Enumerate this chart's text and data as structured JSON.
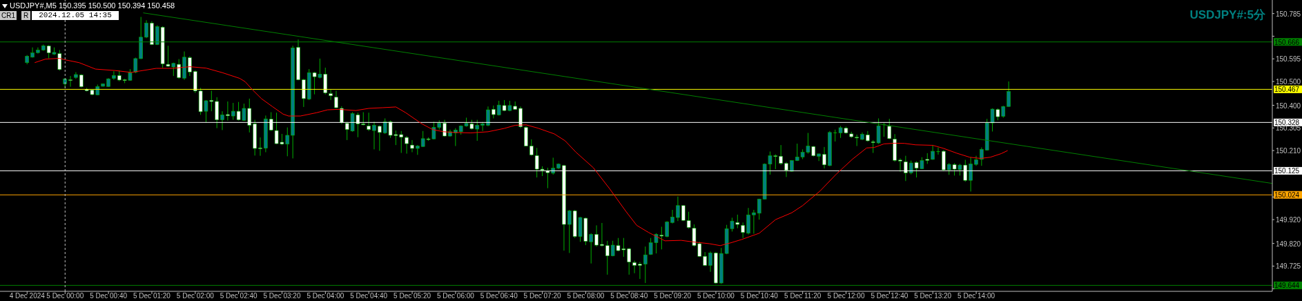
{
  "chart_data": {
    "type": "candlestick",
    "title": "USDJPY#,M5 150.395 150.500 150.394 150.458",
    "subtitle": "USDJPY#:5分",
    "annotations": [
      "CR1",
      "R",
      "2024.12.05 14:35"
    ],
    "colors": [
      "#008080",
      "#008080",
      "#008080",
      "#008080",
      "#ffffff",
      "#008080",
      "#ffffff",
      "#008080",
      "#ffffff",
      "#008080",
      "#ffffff",
      "#ffffff",
      "#ffffff",
      "#008080",
      "#008080",
      "#008080",
      "#008080",
      "#ffffff",
      "#ffffff",
      "#008080",
      "#008080",
      "#008080",
      "#008080",
      "#ffffff",
      "#008080",
      "#ffffff",
      "#ffffff",
      "#008080",
      "#ffffff",
      "#008080",
      "#ffffff",
      "#ffffff",
      "#ffffff",
      "#008080",
      "#ffffff",
      "#ffffff",
      "#008080",
      "#ffffff",
      "#008080",
      "#ffffff",
      "#008080",
      "#ffffff",
      "#ffffff",
      "#ffffff",
      "#008080",
      "#ffffff",
      "#ffffff",
      "#ffffff",
      "#008080",
      "#008080",
      "#ffffff",
      "#ffffff",
      "#008080",
      "#ffffff",
      "#008080",
      "#ffffff",
      "#ffffff",
      "#ffffff",
      "#ffffff",
      "#ffffff",
      "#008080",
      "#ffffff",
      "#ffffff",
      "#ffffff",
      "#008080",
      "#ffffff",
      "#008080",
      "#ffffff",
      "#ffffff",
      "#ffffff",
      "#ffffff",
      "#ffffff",
      "#008080",
      "#008080",
      "#ffffff",
      "#008080",
      "#008080",
      "#ffffff",
      "#008080",
      "#008080",
      "#008080",
      "#008080",
      "#ffffff",
      "#008080",
      "#008080",
      "#008080",
      "#ffffff",
      "#008080",
      "#ffffff",
      "#008080",
      "#ffffff",
      "#ffffff",
      "#ffffff",
      "#ffffff",
      "#ffffff",
      "#ffffff",
      "#ffffff",
      "#008080",
      "#008080",
      "#ffffff",
      "#008080",
      "#ffffff",
      "#008080",
      "#ffffff",
      "#008080",
      "#ffffff",
      "#ffffff",
      "#ffffff",
      "#008080",
      "#ffffff",
      "#ffffff",
      "#ffffff",
      "#ffffff",
      "#ffffff",
      "#008080",
      "#008080",
      "#008080",
      "#ffffff",
      "#008080",
      "#008080",
      "#008080",
      "#ffffff",
      "#ffffff",
      "#ffffff",
      "#ffffff",
      "#ffffff",
      "#008080",
      "#ffffff",
      "#008080",
      "#008080",
      "#008080",
      "#ffffff",
      "#ffffff",
      "#008080",
      "#008080",
      "#008080",
      "#008080",
      "#008080",
      "#ffffff",
      "#ffffff",
      "#ffffff",
      "#008080",
      "#008080",
      "#008080",
      "#008080",
      "#ffffff",
      "#008080",
      "#ffffff",
      "#008080",
      "#00b000",
      "#008080",
      "#ffffff",
      "#ffffff",
      "#ffffff",
      "#008080",
      "#ffffff",
      "#ffffff",
      "#008080",
      "#00b000",
      "#ffffff",
      "#ffffff",
      "#ffffff",
      "#ffffff",
      "#008080",
      "#ffffff",
      "#008080",
      "#ffffff",
      "#008080",
      "#00b000",
      "#ffffff",
      "#008080",
      "#ffffff",
      "#008080",
      "#ffffff",
      "#008080",
      "#008080",
      "#008080",
      "#008080",
      "#008080",
      "#ffffff",
      "#008080",
      "#008080"
    ],
    "x": [
      "2024-12-04T23:25",
      "2024-12-04T23:30",
      "2024-12-04T23:35",
      "2024-12-04T23:40",
      "2024-12-04T23:45",
      "2024-12-04T23:50",
      "2024-12-04T23:55",
      "2024-12-05T00:00",
      "2024-12-05T00:05",
      "2024-12-05T00:10",
      "2024-12-05T00:15",
      "2024-12-05T00:20",
      "2024-12-05T00:25",
      "2024-12-05T00:30",
      "2024-12-05T00:35",
      "2024-12-05T00:40",
      "2024-12-05T00:45",
      "2024-12-05T00:50",
      "2024-12-05T00:55",
      "2024-12-05T01:00",
      "2024-12-05T01:05",
      "2024-12-05T01:10",
      "2024-12-05T01:15",
      "2024-12-05T01:20",
      "2024-12-05T01:25",
      "2024-12-05T01:30",
      "2024-12-05T01:35",
      "2024-12-05T01:40",
      "2024-12-05T01:45",
      "2024-12-05T01:50",
      "2024-12-05T01:55",
      "2024-12-05T02:00",
      "2024-12-05T02:05",
      "2024-12-05T02:10",
      "2024-12-05T02:15",
      "2024-12-05T02:20",
      "2024-12-05T02:25",
      "2024-12-05T02:30",
      "2024-12-05T02:35",
      "2024-12-05T02:40",
      "2024-12-05T02:45",
      "2024-12-05T02:50",
      "2024-12-05T02:55",
      "2024-12-05T03:00",
      "2024-12-05T03:05",
      "2024-12-05T03:10",
      "2024-12-05T03:15",
      "2024-12-05T03:20",
      "2024-12-05T03:25",
      "2024-12-05T03:30",
      "2024-12-05T03:35",
      "2024-12-05T03:40",
      "2024-12-05T03:45",
      "2024-12-05T03:50",
      "2024-12-05T03:55",
      "2024-12-05T04:00",
      "2024-12-05T04:05",
      "2024-12-05T04:10",
      "2024-12-05T04:15",
      "2024-12-05T04:20",
      "2024-12-05T04:25",
      "2024-12-05T04:30",
      "2024-12-05T04:35",
      "2024-12-05T04:40",
      "2024-12-05T04:45",
      "2024-12-05T04:50",
      "2024-12-05T04:55",
      "2024-12-05T05:00",
      "2024-12-05T05:05",
      "2024-12-05T05:10",
      "2024-12-05T05:15",
      "2024-12-05T05:20",
      "2024-12-05T05:25",
      "2024-12-05T05:30",
      "2024-12-05T05:35",
      "2024-12-05T05:40",
      "2024-12-05T05:45",
      "2024-12-05T05:50",
      "2024-12-05T05:55",
      "2024-12-05T06:00",
      "2024-12-05T06:05",
      "2024-12-05T06:10",
      "2024-12-05T06:15",
      "2024-12-05T06:20",
      "2024-12-05T06:25",
      "2024-12-05T06:30",
      "2024-12-05T06:35",
      "2024-12-05T06:40",
      "2024-12-05T06:45",
      "2024-12-05T06:50",
      "2024-12-05T06:55",
      "2024-12-05T07:00",
      "2024-12-05T07:05",
      "2024-12-05T07:10",
      "2024-12-05T07:15",
      "2024-12-05T07:20",
      "2024-12-05T07:25",
      "2024-12-05T07:30",
      "2024-12-05T07:35",
      "2024-12-05T07:40",
      "2024-12-05T07:45",
      "2024-12-05T07:50",
      "2024-12-05T07:55",
      "2024-12-05T08:00",
      "2024-12-05T08:05",
      "2024-12-05T08:10",
      "2024-12-05T08:15",
      "2024-12-05T08:20",
      "2024-12-05T08:25",
      "2024-12-05T08:30",
      "2024-12-05T08:35",
      "2024-12-05T08:40",
      "2024-12-05T08:45",
      "2024-12-05T08:50",
      "2024-12-05T08:55",
      "2024-12-05T09:00",
      "2024-12-05T09:05",
      "2024-12-05T09:10",
      "2024-12-05T09:15",
      "2024-12-05T09:20",
      "2024-12-05T09:25",
      "2024-12-05T09:30",
      "2024-12-05T09:35",
      "2024-12-05T09:40",
      "2024-12-05T09:45",
      "2024-12-05T09:50",
      "2024-12-05T09:55",
      "2024-12-05T10:00",
      "2024-12-05T10:05",
      "2024-12-05T10:10",
      "2024-12-05T10:15",
      "2024-12-05T10:20",
      "2024-12-05T10:25",
      "2024-12-05T10:30",
      "2024-12-05T10:35",
      "2024-12-05T10:40",
      "2024-12-05T10:45",
      "2024-12-05T10:50",
      "2024-12-05T10:55",
      "2024-12-05T11:00",
      "2024-12-05T11:05",
      "2024-12-05T11:10",
      "2024-12-05T11:15",
      "2024-12-05T11:20",
      "2024-12-05T11:25",
      "2024-12-05T11:30",
      "2024-12-05T11:35",
      "2024-12-05T11:40",
      "2024-12-05T11:45",
      "2024-12-05T11:50",
      "2024-12-05T11:55",
      "2024-12-05T12:00",
      "2024-12-05T12:05",
      "2024-12-05T12:10",
      "2024-12-05T12:15",
      "2024-12-05T12:20",
      "2024-12-05T12:25",
      "2024-12-05T12:30",
      "2024-12-05T12:35",
      "2024-12-05T12:40",
      "2024-12-05T12:45",
      "2024-12-05T12:50",
      "2024-12-05T12:55",
      "2024-12-05T13:00",
      "2024-12-05T13:05",
      "2024-12-05T13:10",
      "2024-12-05T13:15",
      "2024-12-05T13:20",
      "2024-12-05T13:25",
      "2024-12-05T13:30",
      "2024-12-05T13:35",
      "2024-12-05T13:40",
      "2024-12-05T13:45",
      "2024-12-05T13:50",
      "2024-12-05T13:55",
      "2024-12-05T14:00",
      "2024-12-05T14:05",
      "2024-12-05T14:10",
      "2024-12-05T14:15",
      "2024-12-05T14:20",
      "2024-12-05T14:25",
      "2024-12-05T14:30"
    ],
    "ohlc": [
      [
        150.579,
        150.611,
        150.572,
        150.606
      ],
      [
        150.602,
        150.643,
        150.6,
        150.62
      ],
      [
        150.621,
        150.643,
        150.617,
        150.632
      ],
      [
        150.632,
        150.655,
        150.629,
        150.65
      ],
      [
        150.649,
        150.653,
        150.597,
        150.62
      ],
      [
        150.615,
        150.643,
        150.611,
        150.622
      ],
      [
        150.617,
        150.632,
        150.546,
        150.55
      ],
      [
        150.49,
        150.513,
        150.475,
        150.511
      ],
      [
        150.507,
        150.523,
        150.478,
        150.505
      ],
      [
        150.517,
        150.539,
        150.511,
        150.529
      ],
      [
        150.527,
        150.531,
        150.475,
        150.478
      ],
      [
        150.466,
        150.473,
        150.458,
        150.461
      ],
      [
        150.464,
        150.466,
        150.442,
        150.445
      ],
      [
        150.444,
        150.487,
        150.442,
        150.479
      ],
      [
        150.48,
        150.492,
        150.478,
        150.49
      ],
      [
        150.479,
        150.514,
        150.477,
        150.511
      ],
      [
        150.513,
        150.543,
        150.507,
        150.525
      ],
      [
        150.525,
        150.546,
        150.501,
        150.506
      ],
      [
        150.507,
        150.511,
        150.493,
        150.504
      ],
      [
        150.505,
        150.552,
        150.503,
        150.537
      ],
      [
        150.539,
        150.6,
        150.535,
        150.596
      ],
      [
        150.596,
        150.771,
        150.594,
        150.686
      ],
      [
        150.686,
        150.757,
        150.682,
        150.745
      ],
      [
        150.745,
        150.753,
        150.653,
        150.655
      ],
      [
        150.655,
        150.736,
        150.653,
        150.73
      ],
      [
        150.728,
        150.732,
        150.558,
        150.574
      ],
      [
        150.572,
        150.65,
        150.561,
        150.564
      ],
      [
        150.561,
        150.579,
        150.523,
        150.576
      ],
      [
        150.572,
        150.594,
        150.511,
        150.516
      ],
      [
        150.514,
        150.626,
        150.507,
        150.602
      ],
      [
        150.6,
        150.606,
        150.523,
        150.54
      ],
      [
        150.542,
        150.546,
        150.452,
        150.46
      ],
      [
        150.46,
        150.473,
        150.36,
        150.373
      ],
      [
        150.375,
        150.422,
        150.328,
        150.419
      ],
      [
        150.421,
        150.461,
        150.375,
        150.416
      ],
      [
        150.416,
        150.434,
        150.304,
        150.339
      ],
      [
        150.339,
        150.375,
        150.296,
        150.36
      ],
      [
        150.361,
        150.416,
        150.336,
        150.356
      ],
      [
        150.355,
        150.41,
        150.339,
        150.375
      ],
      [
        150.375,
        150.414,
        150.336,
        150.339
      ],
      [
        150.337,
        150.407,
        150.334,
        150.387
      ],
      [
        150.387,
        150.428,
        150.286,
        150.316
      ],
      [
        150.322,
        150.339,
        150.189,
        150.219
      ],
      [
        150.221,
        150.265,
        150.188,
        150.218
      ],
      [
        150.22,
        150.357,
        150.203,
        150.343
      ],
      [
        150.342,
        150.371,
        150.292,
        150.296
      ],
      [
        150.294,
        150.369,
        150.237,
        150.239
      ],
      [
        150.245,
        150.28,
        150.233,
        150.237
      ],
      [
        150.237,
        150.307,
        150.186,
        150.274
      ],
      [
        150.274,
        150.65,
        150.177,
        150.641
      ],
      [
        150.643,
        150.676,
        150.505,
        150.507
      ],
      [
        150.507,
        150.511,
        150.393,
        150.428
      ],
      [
        150.426,
        150.552,
        150.422,
        150.537
      ],
      [
        150.537,
        150.54,
        150.446,
        150.52
      ],
      [
        150.517,
        150.596,
        150.513,
        150.531
      ],
      [
        150.531,
        150.558,
        150.446,
        150.452
      ],
      [
        150.449,
        150.466,
        150.422,
        150.44
      ],
      [
        150.434,
        150.461,
        150.387,
        150.39
      ],
      [
        150.387,
        150.396,
        150.322,
        150.328
      ],
      [
        150.324,
        150.331,
        150.254,
        150.298
      ],
      [
        150.292,
        150.371,
        150.289,
        150.365
      ],
      [
        150.36,
        150.369,
        150.266,
        150.322
      ],
      [
        150.322,
        150.371,
        150.316,
        150.318
      ],
      [
        150.313,
        150.369,
        150.292,
        150.298
      ],
      [
        150.294,
        150.331,
        150.215,
        150.316
      ],
      [
        150.312,
        150.316,
        150.209,
        150.286
      ],
      [
        150.284,
        150.345,
        150.28,
        150.331
      ],
      [
        150.331,
        150.336,
        150.263,
        150.274
      ],
      [
        150.277,
        150.294,
        150.233,
        150.273
      ],
      [
        150.277,
        150.292,
        150.2,
        150.266
      ],
      [
        150.265,
        150.271,
        150.197,
        150.239
      ],
      [
        150.233,
        150.254,
        150.203,
        150.219
      ],
      [
        150.219,
        150.233,
        150.192,
        150.229
      ],
      [
        150.227,
        150.292,
        150.225,
        150.26
      ],
      [
        150.259,
        150.265,
        150.251,
        150.257
      ],
      [
        150.259,
        150.331,
        150.257,
        150.307
      ],
      [
        150.307,
        150.337,
        150.298,
        150.325
      ],
      [
        150.325,
        150.339,
        150.268,
        150.271
      ],
      [
        150.271,
        150.298,
        150.268,
        150.289
      ],
      [
        150.284,
        150.304,
        150.229,
        150.296
      ],
      [
        150.289,
        150.316,
        150.277,
        150.313
      ],
      [
        150.313,
        150.348,
        150.31,
        150.324
      ],
      [
        150.322,
        150.339,
        150.298,
        150.302
      ],
      [
        150.3,
        150.339,
        150.251,
        150.316
      ],
      [
        150.316,
        150.33,
        150.292,
        150.322
      ],
      [
        150.316,
        150.395,
        150.312,
        150.381
      ],
      [
        150.383,
        150.399,
        150.345,
        150.361
      ],
      [
        150.36,
        150.419,
        150.357,
        150.401
      ],
      [
        150.399,
        150.422,
        150.375,
        150.378
      ],
      [
        150.378,
        150.419,
        150.375,
        150.399
      ],
      [
        150.396,
        150.416,
        150.381,
        150.383
      ],
      [
        150.387,
        150.395,
        150.304,
        150.31
      ],
      [
        150.307,
        150.312,
        150.227,
        150.229
      ],
      [
        150.229,
        150.257,
        150.188,
        150.192
      ],
      [
        150.189,
        150.221,
        150.097,
        150.132
      ],
      [
        150.132,
        150.144,
        150.103,
        150.127
      ],
      [
        150.124,
        150.138,
        150.052,
        150.117
      ],
      [
        150.115,
        150.18,
        150.109,
        150.136
      ],
      [
        150.136,
        150.156,
        150.132,
        150.153
      ],
      [
        150.147,
        150.15,
        149.79,
        149.9
      ],
      [
        149.9,
        149.961,
        149.78,
        149.957
      ],
      [
        149.957,
        149.961,
        149.843,
        149.849
      ],
      [
        149.849,
        149.931,
        149.827,
        149.929
      ],
      [
        149.926,
        149.929,
        149.813,
        149.829
      ],
      [
        149.827,
        149.863,
        149.736,
        149.858
      ],
      [
        149.858,
        149.896,
        149.807,
        149.813
      ],
      [
        149.816,
        149.906,
        149.807,
        149.811
      ],
      [
        149.811,
        149.831,
        149.689,
        149.768
      ],
      [
        149.768,
        149.831,
        149.766,
        149.813
      ],
      [
        149.811,
        149.843,
        149.787,
        149.79
      ],
      [
        149.798,
        149.843,
        149.764,
        149.793
      ],
      [
        149.798,
        149.801,
        149.689,
        149.742
      ],
      [
        149.74,
        149.748,
        149.695,
        149.728
      ],
      [
        149.733,
        149.742,
        149.671,
        149.728
      ],
      [
        149.733,
        149.807,
        149.654,
        149.772
      ],
      [
        149.774,
        149.843,
        149.772,
        149.823
      ],
      [
        149.823,
        149.863,
        149.778,
        149.858
      ],
      [
        149.855,
        149.89,
        149.795,
        149.851
      ],
      [
        149.849,
        149.914,
        149.846,
        149.91
      ],
      [
        149.908,
        149.961,
        149.904,
        149.931
      ],
      [
        149.929,
        150.017,
        149.914,
        149.979
      ],
      [
        149.979,
        149.981,
        149.914,
        149.917
      ],
      [
        149.916,
        149.953,
        149.882,
        149.887
      ],
      [
        149.884,
        149.9,
        149.807,
        149.811
      ],
      [
        149.819,
        149.827,
        149.764,
        149.766
      ],
      [
        149.766,
        149.784,
        149.725,
        149.728
      ],
      [
        149.728,
        149.786,
        149.701,
        149.78
      ],
      [
        149.78,
        149.784,
        149.65,
        149.654
      ],
      [
        149.654,
        149.801,
        149.65,
        149.778
      ],
      [
        149.778,
        149.898,
        149.775,
        149.882
      ],
      [
        149.882,
        149.928,
        149.87,
        149.914
      ],
      [
        149.908,
        149.941,
        149.884,
        149.9
      ],
      [
        149.896,
        149.908,
        149.843,
        149.866
      ],
      [
        149.863,
        149.969,
        149.858,
        149.94
      ],
      [
        149.94,
        149.961,
        149.861,
        149.949
      ],
      [
        149.947,
        150.008,
        149.92,
        150.006
      ],
      [
        150.006,
        150.156,
        150.005,
        150.153
      ],
      [
        150.153,
        150.206,
        150.109,
        150.188
      ],
      [
        150.188,
        150.194,
        150.132,
        150.186
      ],
      [
        150.186,
        150.233,
        150.15,
        150.156
      ],
      [
        150.156,
        150.162,
        150.099,
        150.127
      ],
      [
        150.123,
        150.17,
        150.121,
        150.168
      ],
      [
        150.168,
        150.239,
        150.166,
        150.183
      ],
      [
        150.183,
        150.215,
        150.174,
        150.203
      ],
      [
        150.203,
        150.284,
        150.197,
        150.229
      ],
      [
        150.227,
        150.229,
        150.185,
        150.188
      ],
      [
        150.186,
        150.197,
        150.166,
        150.196
      ],
      [
        150.194,
        150.225,
        150.135,
        150.15
      ],
      [
        150.147,
        150.292,
        150.144,
        150.286
      ],
      [
        150.286,
        150.298,
        150.248,
        150.286
      ],
      [
        150.284,
        150.313,
        150.263,
        150.306
      ],
      [
        150.304,
        150.31,
        150.28,
        150.284
      ],
      [
        150.28,
        150.289,
        150.263,
        150.268
      ],
      [
        150.266,
        150.277,
        150.229,
        150.263
      ],
      [
        150.257,
        150.286,
        150.254,
        150.278
      ],
      [
        150.276,
        150.292,
        150.247,
        150.251
      ],
      [
        150.247,
        150.254,
        150.2,
        150.243
      ],
      [
        150.242,
        150.345,
        150.238,
        150.314
      ],
      [
        150.32,
        150.326,
        150.268,
        150.32
      ],
      [
        150.312,
        150.343,
        150.258,
        150.26
      ],
      [
        150.258,
        150.279,
        150.163,
        150.169
      ],
      [
        150.17,
        150.177,
        150.121,
        150.166
      ],
      [
        150.163,
        150.188,
        150.082,
        150.116
      ],
      [
        150.116,
        150.168,
        150.11,
        150.158
      ],
      [
        150.16,
        150.165,
        150.097,
        150.136
      ],
      [
        150.134,
        150.182,
        150.132,
        150.168
      ],
      [
        150.173,
        150.199,
        150.154,
        150.169
      ],
      [
        150.173,
        150.232,
        150.171,
        150.207
      ],
      [
        150.207,
        150.223,
        150.193,
        150.207
      ],
      [
        150.207,
        150.212,
        150.123,
        150.129
      ],
      [
        150.129,
        150.157,
        150.108,
        150.152
      ],
      [
        150.151,
        150.157,
        150.105,
        150.132
      ],
      [
        150.13,
        150.154,
        150.105,
        150.149
      ],
      [
        150.149,
        150.171,
        150.079,
        150.085
      ],
      [
        150.085,
        150.182,
        150.038,
        150.154
      ],
      [
        150.152,
        150.188,
        150.146,
        150.171
      ],
      [
        150.173,
        150.223,
        150.146,
        150.215
      ],
      [
        150.212,
        150.343,
        150.21,
        150.326
      ],
      [
        150.326,
        150.387,
        150.29,
        150.384
      ],
      [
        150.382,
        150.387,
        150.337,
        150.352
      ],
      [
        150.354,
        150.398,
        150.348,
        150.395
      ],
      [
        150.395,
        150.5,
        150.394,
        150.458
      ]
    ],
    "series": [
      {
        "type": "line",
        "color": "#ff0000",
        "x": [
          "2024-12-04T23:32",
          "2024-12-04T23:42",
          "2024-12-04T23:55",
          "2024-12-05T00:00",
          "2024-12-05T00:13",
          "2024-12-05T00:28",
          "2024-12-05T00:46",
          "2024-12-05T01:01",
          "2024-12-05T01:09",
          "2024-12-05T01:24",
          "2024-12-05T01:39",
          "2024-12-05T01:55",
          "2024-12-05T02:10",
          "2024-12-05T02:25",
          "2024-12-05T02:41",
          "2024-12-05T02:46",
          "2024-12-05T02:53",
          "2024-12-05T03:01",
          "2024-12-05T03:11",
          "2024-12-05T03:21",
          "2024-12-05T03:26",
          "2024-12-05T03:37",
          "2024-12-05T03:52",
          "2024-12-05T04:02",
          "2024-12-05T04:12",
          "2024-12-05T04:28",
          "2024-12-05T04:40",
          "2024-12-05T04:53",
          "2024-12-05T05:05",
          "2024-12-05T05:14",
          "2024-12-05T05:29",
          "2024-12-05T05:39",
          "2024-12-05T05:49",
          "2024-12-05T05:59",
          "2024-12-05T06:14",
          "2024-12-05T06:30",
          "2024-12-05T06:45",
          "2024-12-05T06:55",
          "2024-12-05T07:05",
          "2024-12-05T07:16",
          "2024-12-05T07:31",
          "2024-12-05T07:41",
          "2024-12-05T07:51",
          "2024-12-05T08:07",
          "2024-12-05T08:22",
          "2024-12-05T08:37",
          "2024-12-05T08:47",
          "2024-12-05T08:58",
          "2024-12-05T09:13",
          "2024-12-05T09:28",
          "2024-12-05T09:38",
          "2024-12-05T09:54",
          "2024-12-05T10:04",
          "2024-12-05T10:14",
          "2024-12-05T10:24",
          "2024-12-05T10:40",
          "2024-12-05T10:55",
          "2024-12-05T11:10",
          "2024-12-05T11:20",
          "2024-12-05T11:36",
          "2024-12-05T11:51",
          "2024-12-05T12:06",
          "2024-12-05T12:19",
          "2024-12-05T12:26",
          "2024-12-05T12:35",
          "2024-12-05T12:45",
          "2024-12-05T12:54",
          "2024-12-05T13:04",
          "2024-12-05T13:20",
          "2024-12-05T13:30",
          "2024-12-05T13:42",
          "2024-12-05T13:54",
          "2024-12-05T14:04",
          "2024-12-05T14:13",
          "2024-12-05T14:23",
          "2024-12-05T14:29"
        ],
        "values": [
          150.579,
          150.594,
          150.597,
          150.591,
          150.579,
          150.552,
          150.546,
          150.538,
          150.544,
          150.555,
          150.555,
          150.562,
          150.556,
          150.537,
          150.513,
          150.499,
          150.464,
          150.428,
          150.395,
          150.363,
          150.355,
          150.355,
          150.369,
          150.381,
          150.383,
          150.378,
          150.387,
          150.39,
          150.393,
          150.369,
          150.322,
          150.298,
          150.289,
          150.286,
          150.284,
          150.289,
          150.303,
          150.316,
          150.318,
          150.304,
          150.28,
          150.251,
          150.203,
          150.138,
          150.05,
          149.955,
          149.896,
          149.866,
          149.831,
          149.833,
          149.827,
          149.819,
          149.811,
          149.823,
          149.837,
          149.863,
          149.92,
          149.949,
          149.979,
          150.04,
          150.111,
          150.174,
          150.221,
          150.223,
          150.238,
          150.241,
          150.24,
          150.234,
          150.232,
          150.219,
          150.199,
          150.182,
          150.177,
          150.182,
          150.197,
          150.21
        ]
      },
      {
        "type": "line",
        "color": "#008000",
        "x": [
          "2024-12-05T01:12",
          "2024-12-05T18:33"
        ],
        "values": [
          150.788,
          150.072
        ]
      }
    ],
    "ref_lines": [
      {
        "axis": "y",
        "value": 150.666,
        "label": "150.666",
        "color": "#008000"
      },
      {
        "axis": "y",
        "value": 150.467,
        "label": "150.467",
        "color": "#ffff00"
      },
      {
        "axis": "y",
        "value": 150.328,
        "label": "150.328",
        "color": "#ffffff"
      },
      {
        "axis": "y",
        "value": 150.125,
        "label": "150.125",
        "color": "#ffffff"
      },
      {
        "axis": "y",
        "value": 150.024,
        "label": "150.024",
        "color": "#ffa500"
      },
      {
        "axis": "y",
        "value": 149.644,
        "label": "149.644",
        "color": "#008000"
      },
      {
        "axis": "x",
        "value": "2024-12-05T00:00",
        "color": "#c0c0c0",
        "line_style": "dashed"
      }
    ],
    "xlim": [
      "2024-12-04T23:00",
      "2024-12-05T18:33"
    ],
    "xticks": [
      {
        "value": "2024-12-04T23:25",
        "label": "4 Dec 2024"
      },
      {
        "value": "2024-12-05T00:00",
        "label": "5 Dec 00:00"
      },
      {
        "value": "2024-12-05T00:40",
        "label": "5 Dec 00:40"
      },
      {
        "value": "2024-12-05T01:20",
        "label": "5 Dec 01:20"
      },
      {
        "value": "2024-12-05T02:00",
        "label": "5 Dec 02:00"
      },
      {
        "value": "2024-12-05T02:40",
        "label": "5 Dec 02:40"
      },
      {
        "value": "2024-12-05T03:20",
        "label": "5 Dec 03:20"
      },
      {
        "value": "2024-12-05T04:00",
        "label": "5 Dec 04:00"
      },
      {
        "value": "2024-12-05T04:40",
        "label": "5 Dec 04:40"
      },
      {
        "value": "2024-12-05T05:20",
        "label": "5 Dec 05:20"
      },
      {
        "value": "2024-12-05T06:00",
        "label": "5 Dec 06:00"
      },
      {
        "value": "2024-12-05T06:40",
        "label": "5 Dec 06:40"
      },
      {
        "value": "2024-12-05T07:20",
        "label": "5 Dec 07:20"
      },
      {
        "value": "2024-12-05T08:00",
        "label": "5 Dec 08:00"
      },
      {
        "value": "2024-12-05T08:40",
        "label": "5 Dec 08:40"
      },
      {
        "value": "2024-12-05T09:20",
        "label": "5 Dec 09:20"
      },
      {
        "value": "2024-12-05T10:00",
        "label": "5 Dec 10:00"
      },
      {
        "value": "2024-12-05T10:40",
        "label": "5 Dec 10:40"
      },
      {
        "value": "2024-12-05T11:20",
        "label": "5 Dec 11:20"
      },
      {
        "value": "2024-12-05T12:00",
        "label": "5 Dec 12:00"
      },
      {
        "value": "2024-12-05T12:40",
        "label": "5 Dec 12:40"
      },
      {
        "value": "2024-12-05T13:20",
        "label": "5 Dec 13:20"
      },
      {
        "value": "2024-12-05T14:00",
        "label": "5 Dec 14:00"
      }
    ],
    "ylim": [
      149.619,
      150.842
    ],
    "yticks": [
      {
        "value": 150.785,
        "label": "150.785"
      },
      {
        "value": 150.69,
        "label": null
      },
      {
        "value": 150.595,
        "label": "150.595"
      },
      {
        "value": 150.5,
        "label": "150.500"
      },
      {
        "value": 150.4,
        "label": "150.400"
      },
      {
        "value": 150.305,
        "label": "150.305"
      },
      {
        "value": 150.21,
        "label": "150.210"
      },
      {
        "value": 150.11,
        "label": null
      },
      {
        "value": 150.015,
        "label": null
      },
      {
        "value": 149.92,
        "label": "149.920"
      },
      {
        "value": 149.82,
        "label": "149.820"
      },
      {
        "value": 149.725,
        "label": "149.725"
      },
      {
        "value": 149.63,
        "label": null
      }
    ]
  }
}
